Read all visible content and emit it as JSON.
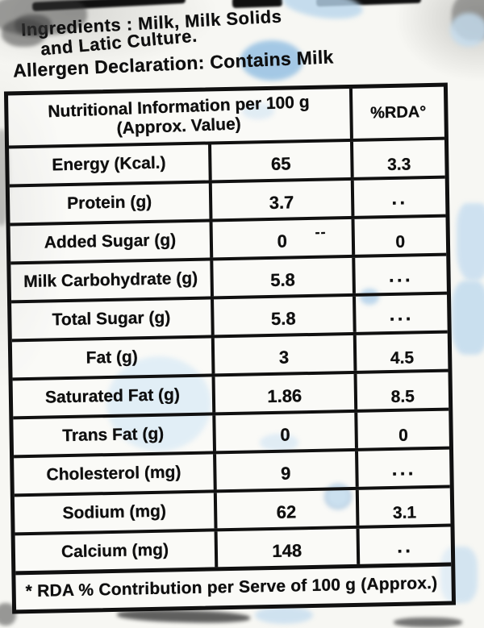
{
  "label": {
    "ingredients_line1": "Ingredients : Milk, Milk Solids",
    "ingredients_line2": "and Latic Culture.",
    "allergen_line": "Allergen Declaration: Contains Milk"
  },
  "table": {
    "header": {
      "main_line1": "Nutritional Information per 100 g",
      "main_line2": "(Approx. Value)",
      "rda_col": "%RDA°"
    },
    "rows": [
      {
        "label": "Energy (Kcal.)",
        "value": "65",
        "rda": "3.3"
      },
      {
        "label": "Protein (g)",
        "value": "3.7",
        "rda": "··"
      },
      {
        "label": "Added Sugar (g)",
        "value": "0",
        "rda": "0",
        "value_mark": "--"
      },
      {
        "label": "Milk Carbohydrate (g)",
        "value": "5.8",
        "rda": "···"
      },
      {
        "label": "Total Sugar (g)",
        "value": "5.8",
        "rda": "···"
      },
      {
        "label": "Fat (g)",
        "value": "3",
        "rda": "4.5"
      },
      {
        "label": "Saturated Fat (g)",
        "value": "1.86",
        "rda": "8.5"
      },
      {
        "label": "Trans Fat (g)",
        "value": "0",
        "rda": "0"
      },
      {
        "label": "Cholesterol (mg)",
        "value": "9",
        "rda": "···"
      },
      {
        "label": "Sodium (mg)",
        "value": "62",
        "rda": "3.1"
      },
      {
        "label": "Calcium (mg)",
        "value": "148",
        "rda": "··"
      }
    ],
    "footnote": "* RDA % Contribution per Serve of 100 g (Approx.)"
  },
  "colors": {
    "ink": "#101010",
    "paper": "#f7f7f3",
    "stain_blue_light": "#cfe4f2",
    "stain_blue_medium": "#9cc4e4"
  }
}
